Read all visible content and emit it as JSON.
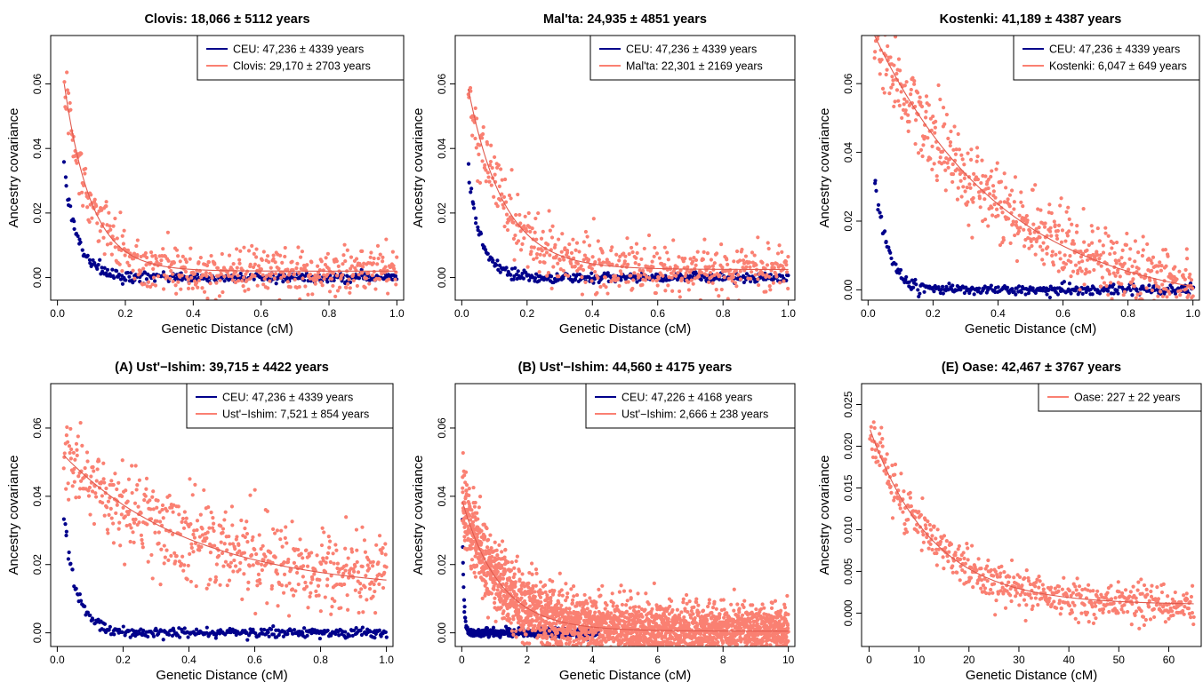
{
  "chart_data": [
    {
      "type": "scatter",
      "title": "Clovis: 18,066 ± 5112 years",
      "xlabel": "Genetic Distance (cM)",
      "ylabel": "Ancestry covariance",
      "xlim": [
        -0.02,
        1.02
      ],
      "ylim": [
        -0.007,
        0.075
      ],
      "xticks": [
        0.0,
        0.2,
        0.4,
        0.6,
        0.8,
        1.0
      ],
      "xtick_labels": [
        "0.0",
        "0.2",
        "0.4",
        "0.6",
        "0.8",
        "1.0"
      ],
      "yticks": [
        0.0,
        0.02,
        0.04,
        0.06
      ],
      "ytick_labels": [
        "0.00",
        "0.02",
        "0.04",
        "0.06"
      ],
      "legend_position": "top-right",
      "series": [
        {
          "name": "CEU: 47,236 ± 4339 years",
          "color": "#00008b",
          "x_range": [
            0.02,
            1.0
          ],
          "n": 320,
          "amp": 0.033,
          "decay": 0.04,
          "base": 0.0,
          "noise": 0.0012,
          "fit": false
        },
        {
          "name": "Clovis: 29,170 ± 2703 years",
          "color": "#fa8072",
          "x_range": [
            0.02,
            1.0
          ],
          "n": 520,
          "amp": 0.058,
          "decay": 0.08,
          "base": 0.002,
          "noise": 0.0055,
          "fit": true
        }
      ]
    },
    {
      "type": "scatter",
      "title": "Mal'ta: 24,935 ± 4851 years",
      "xlabel": "Genetic Distance (cM)",
      "ylabel": "Ancestry covariance",
      "xlim": [
        -0.02,
        1.02
      ],
      "ylim": [
        -0.007,
        0.075
      ],
      "xticks": [
        0.0,
        0.2,
        0.4,
        0.6,
        0.8,
        1.0
      ],
      "xtick_labels": [
        "0.0",
        "0.2",
        "0.4",
        "0.6",
        "0.8",
        "1.0"
      ],
      "yticks": [
        0.0,
        0.02,
        0.04,
        0.06
      ],
      "ytick_labels": [
        "0.00",
        "0.02",
        "0.04",
        "0.06"
      ],
      "legend_position": "top-right",
      "series": [
        {
          "name": "CEU: 47,236 ± 4339 years",
          "color": "#00008b",
          "x_range": [
            0.02,
            1.0
          ],
          "n": 320,
          "amp": 0.033,
          "decay": 0.04,
          "base": 0.0,
          "noise": 0.0012,
          "fit": false
        },
        {
          "name": "Mal'ta: 22,301 ± 2169 years",
          "color": "#fa8072",
          "x_range": [
            0.02,
            1.0
          ],
          "n": 520,
          "amp": 0.056,
          "decay": 0.11,
          "base": 0.0025,
          "noise": 0.0055,
          "fit": true
        }
      ]
    },
    {
      "type": "scatter",
      "title": "Kostenki: 41,189 ± 4387 years",
      "xlabel": "Genetic Distance (cM)",
      "ylabel": "Ancestry covariance",
      "xlim": [
        -0.02,
        1.02
      ],
      "ylim": [
        -0.003,
        0.074
      ],
      "xticks": [
        0.0,
        0.2,
        0.4,
        0.6,
        0.8,
        1.0
      ],
      "xtick_labels": [
        "0.0",
        "0.2",
        "0.4",
        "0.6",
        "0.8",
        "1.0"
      ],
      "yticks": [
        0.0,
        0.02,
        0.04,
        0.06
      ],
      "ytick_labels": [
        "0.00",
        "0.02",
        "0.04",
        "0.06"
      ],
      "legend_position": "top-right",
      "series": [
        {
          "name": "CEU: 47,236 ± 4339 years",
          "color": "#00008b",
          "x_range": [
            0.02,
            1.0
          ],
          "n": 320,
          "amp": 0.033,
          "decay": 0.04,
          "base": 0.0,
          "noise": 0.0012,
          "fit": false
        },
        {
          "name": "Kostenki: 6,047 ± 649 years",
          "color": "#fa8072",
          "x_range": [
            0.02,
            1.0
          ],
          "n": 600,
          "amp": 0.08,
          "decay": 0.4,
          "base": -0.006,
          "noise": 0.006,
          "fit": true
        }
      ]
    },
    {
      "type": "scatter",
      "title": "(A) Ust'−Ishim: 39,715 ± 4422 years",
      "xlabel": "Genetic Distance (cM)",
      "ylabel": "Ancestry covariance",
      "xlim": [
        -0.02,
        1.02
      ],
      "ylim": [
        -0.004,
        0.073
      ],
      "xticks": [
        0.0,
        0.2,
        0.4,
        0.6,
        0.8,
        1.0
      ],
      "xtick_labels": [
        "0.0",
        "0.2",
        "0.4",
        "0.6",
        "0.8",
        "1.0"
      ],
      "yticks": [
        0.0,
        0.02,
        0.04,
        0.06
      ],
      "ytick_labels": [
        "0.00",
        "0.02",
        "0.04",
        "0.06"
      ],
      "legend_position": "top-right",
      "series": [
        {
          "name": "CEU: 47,236 ± 4339 years",
          "color": "#00008b",
          "x_range": [
            0.02,
            1.0
          ],
          "n": 320,
          "amp": 0.033,
          "decay": 0.04,
          "base": 0.0,
          "noise": 0.0012,
          "fit": false
        },
        {
          "name": "Ust'−Ishim: 7,521 ± 854 years",
          "color": "#fa8072",
          "x_range": [
            0.02,
            1.0
          ],
          "n": 600,
          "amp": 0.04,
          "decay": 0.4,
          "base": 0.012,
          "noise": 0.0075,
          "fit": true
        }
      ]
    },
    {
      "type": "scatter",
      "title": "(B) Ust'−Ishim: 44,560 ± 4175 years",
      "xlabel": "Genetic Distance (cM)",
      "ylabel": "Ancestry covariance",
      "xlim": [
        -0.2,
        10.2
      ],
      "ylim": [
        -0.004,
        0.073
      ],
      "xticks": [
        0,
        2,
        4,
        6,
        8,
        10
      ],
      "xtick_labels": [
        "0",
        "2",
        "4",
        "6",
        "8",
        "10"
      ],
      "yticks": [
        0.0,
        0.02,
        0.04,
        0.06
      ],
      "ytick_labels": [
        "0.00",
        "0.02",
        "0.04",
        "0.06"
      ],
      "legend_position": "top-right",
      "series": [
        {
          "name": "CEU: 47,226 ± 4168 years",
          "color": "#00008b",
          "x_range": [
            0.02,
            4.2
          ],
          "n": 420,
          "amp": 0.033,
          "decay": 0.04,
          "base": 0.0,
          "noise": 0.001,
          "fit": false
        },
        {
          "name": "Ust'−Ishim: 2,666 ± 238 years",
          "color": "#fa8072",
          "x_range": [
            0.02,
            10.0
          ],
          "n": 2600,
          "amp": 0.038,
          "decay": 1.15,
          "base": 0.0005,
          "noise": 0.006,
          "fit": true
        }
      ]
    },
    {
      "type": "scatter",
      "title": "(E) Oase: 42,467 ± 3767 years",
      "xlabel": "Genetic Distance (cM)",
      "ylabel": "Ancestry covariance",
      "xlim": [
        -1.5,
        66.5
      ],
      "ylim": [
        -0.004,
        0.0275
      ],
      "xticks": [
        0,
        10,
        20,
        30,
        40,
        50,
        60
      ],
      "xtick_labels": [
        "0",
        "10",
        "20",
        "30",
        "40",
        "50",
        "60"
      ],
      "yticks": [
        0.0,
        0.005,
        0.01,
        0.015,
        0.02,
        0.025
      ],
      "ytick_labels": [
        "0.000",
        "0.005",
        "0.010",
        "0.015",
        "0.020",
        "0.025"
      ],
      "legend_position": "top-right",
      "series": [
        {
          "name": "Oase: 227 ± 22 years",
          "color": "#fa8072",
          "x_range": [
            0.2,
            65.0
          ],
          "n": 560,
          "amp": 0.021,
          "decay": 12.5,
          "base": 0.001,
          "noise": 0.0016,
          "fit": true
        }
      ]
    }
  ]
}
